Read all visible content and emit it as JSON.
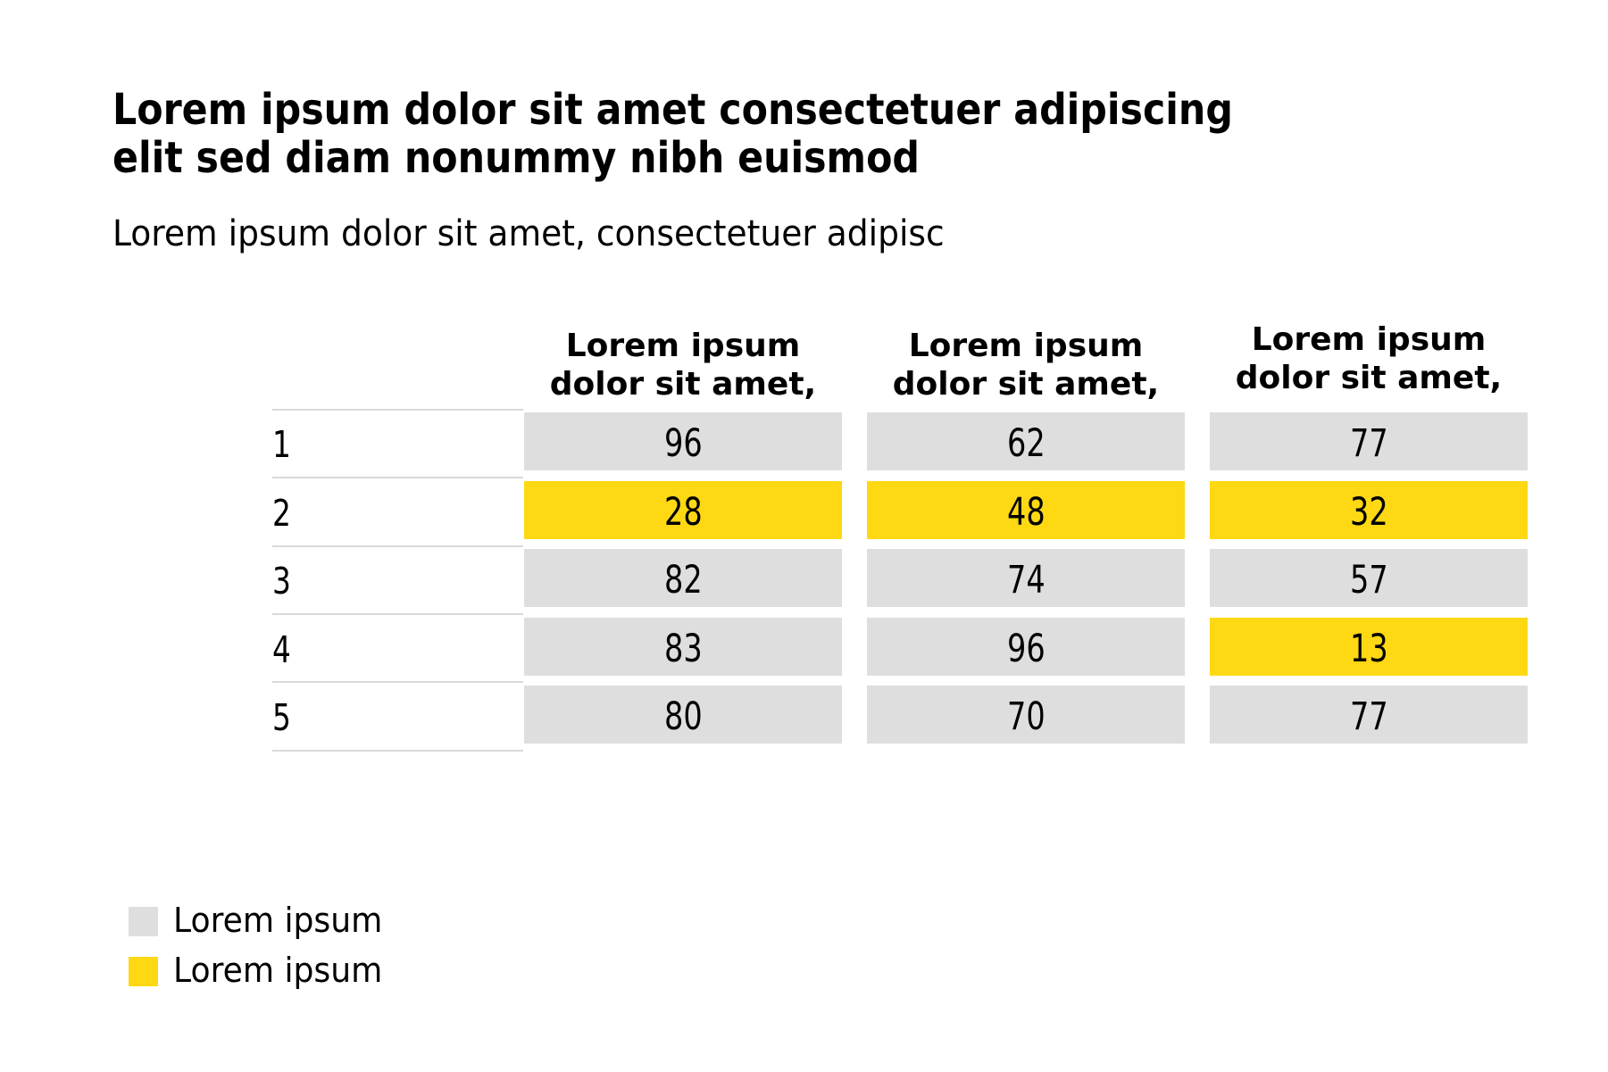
{
  "title": "Lorem ipsum dolor sit amet consectetuer adipiscing elit sed diam nonummy nibh euismod",
  "subtitle": "Lorem ipsum dolor sit amet, consectetuer adipisc",
  "colors": {
    "page_bg": "#ffffff",
    "text": "#000000",
    "default_cell": "#dedede",
    "highlight_cell": "#fdd813",
    "separator": "#d9d9d9"
  },
  "table": {
    "column_headers": [
      "Lorem ipsum dolor sit amet,",
      "Lorem ipsum dolor sit amet,",
      "Lorem ipsum dolor sit amet,"
    ],
    "row_labels": [
      "1",
      "2",
      "3",
      "4",
      "5"
    ],
    "rows": [
      {
        "label": "1",
        "values": [
          96,
          62,
          77
        ],
        "highlighted": [
          false,
          false,
          false
        ]
      },
      {
        "label": "2",
        "values": [
          28,
          48,
          32
        ],
        "highlighted": [
          true,
          true,
          true
        ]
      },
      {
        "label": "3",
        "values": [
          82,
          74,
          57
        ],
        "highlighted": [
          false,
          false,
          false
        ]
      },
      {
        "label": "4",
        "values": [
          83,
          96,
          13
        ],
        "highlighted": [
          false,
          false,
          true
        ]
      },
      {
        "label": "5",
        "values": [
          80,
          70,
          77
        ],
        "highlighted": [
          false,
          false,
          false
        ]
      }
    ]
  },
  "legend": {
    "items": [
      {
        "label": "Lorem ipsum",
        "color": "#dedede",
        "meaning": "default cell"
      },
      {
        "label": "Lorem ipsum",
        "color": "#fdd813",
        "meaning": "highlighted cell"
      }
    ]
  },
  "chart_data": {
    "type": "table",
    "title": "Lorem ipsum dolor sit amet consectetuer adipiscing elit sed diam nonummy nibh euismod",
    "subtitle": "Lorem ipsum dolor sit amet, consectetuer adipisc",
    "columns": [
      "Lorem ipsum dolor sit amet,",
      "Lorem ipsum dolor sit amet,",
      "Lorem ipsum dolor sit amet,"
    ],
    "row_labels": [
      "1",
      "2",
      "3",
      "4",
      "5"
    ],
    "values": [
      [
        96,
        62,
        77
      ],
      [
        28,
        48,
        32
      ],
      [
        82,
        74,
        57
      ],
      [
        83,
        96,
        13
      ],
      [
        80,
        70,
        77
      ]
    ],
    "highlighted_cells": [
      {
        "row": "2",
        "col": 1
      },
      {
        "row": "2",
        "col": 2
      },
      {
        "row": "2",
        "col": 3
      },
      {
        "row": "4",
        "col": 3
      }
    ],
    "legend_entries": [
      "Lorem ipsum",
      "Lorem ipsum"
    ],
    "legend_position": "bottom-left",
    "grid": false
  }
}
